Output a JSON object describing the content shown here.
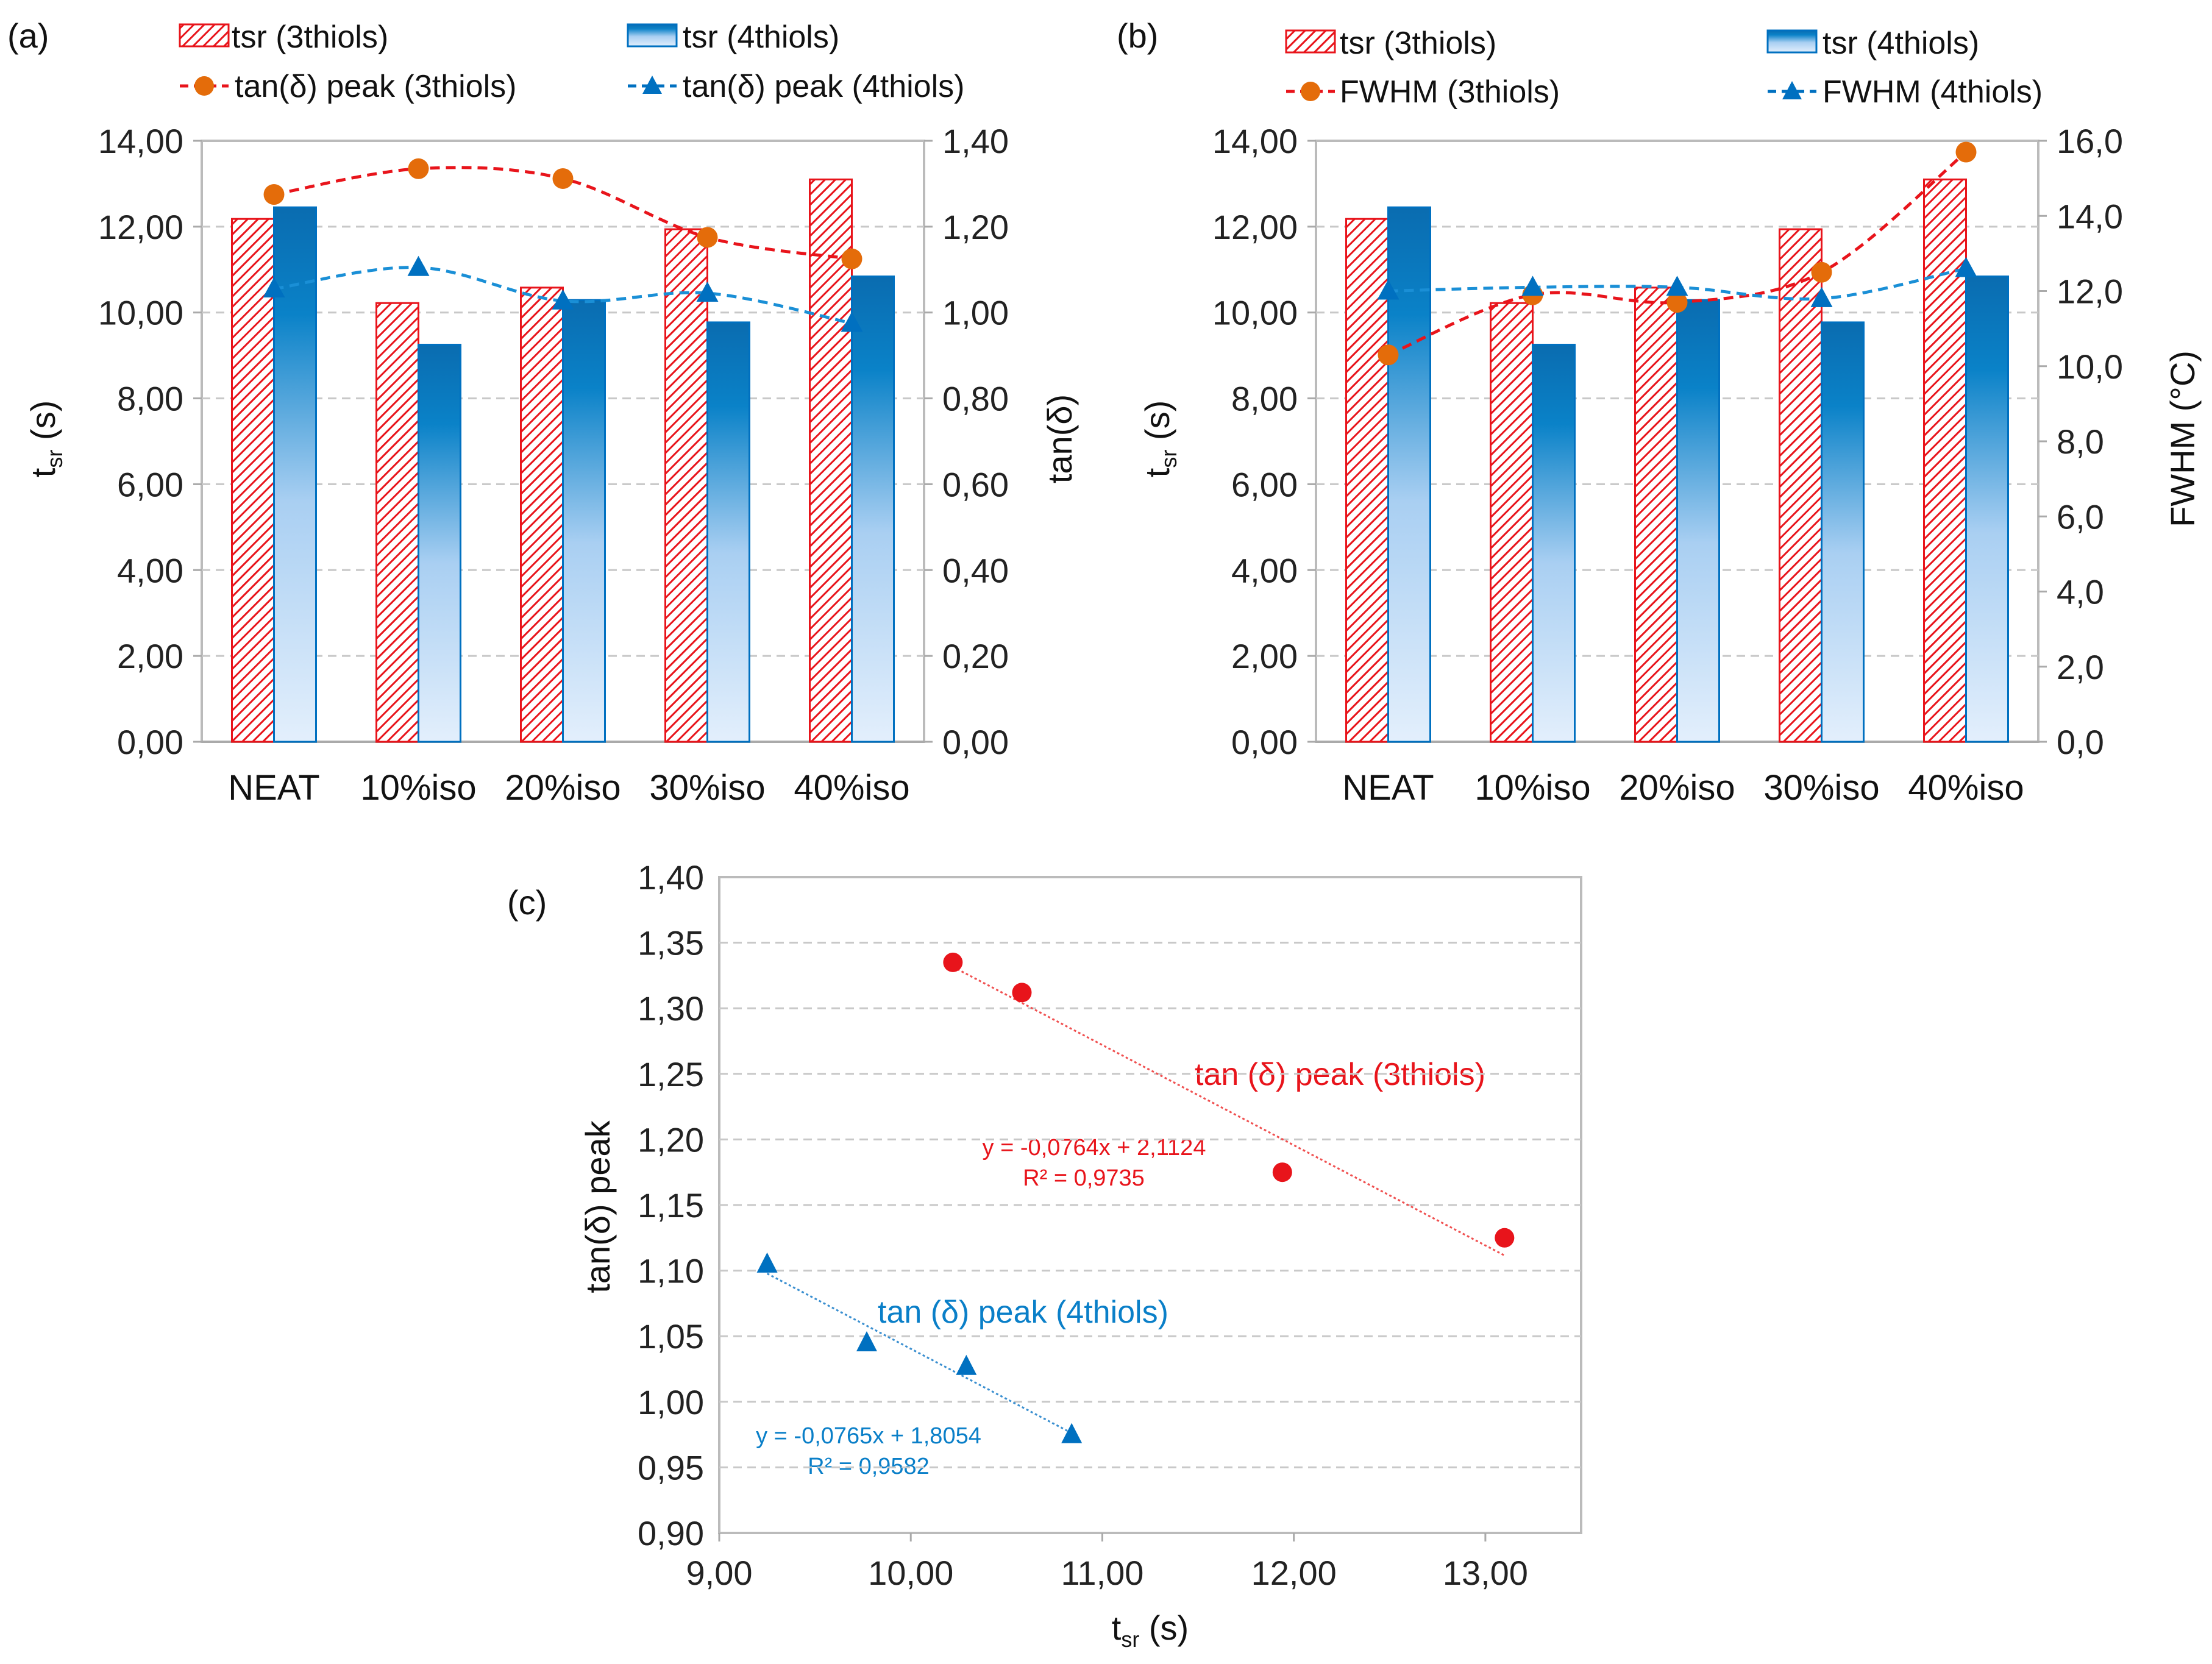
{
  "chart_data": [
    {
      "type": "bar",
      "panel": "(a)",
      "categories": [
        "NEAT",
        "10%iso",
        "20%iso",
        "30%iso",
        "40%iso"
      ],
      "series": [
        {
          "name": "tsr (3thiols)",
          "kind": "bar",
          "axis": "left",
          "values": [
            12.18,
            10.22,
            10.58,
            11.94,
            13.1
          ]
        },
        {
          "name": "tsr (4thiols)",
          "kind": "bar",
          "axis": "left",
          "values": [
            12.45,
            9.25,
            10.29,
            9.77,
            10.84
          ]
        },
        {
          "name": "tan(δ) peak (3thiols)",
          "kind": "line",
          "axis": "right",
          "values": [
            1.275,
            1.335,
            1.312,
            1.175,
            1.125
          ]
        },
        {
          "name": "tan(δ) peak (4thiols)",
          "kind": "line",
          "axis": "right",
          "values": [
            1.055,
            1.105,
            1.027,
            1.045,
            0.975
          ]
        }
      ],
      "ylabel": {
        "main": "t",
        "sub": "sr",
        "unit": " (s)"
      },
      "y2label": "tan(δ)",
      "ylim": [
        0,
        14
      ],
      "yticks": [
        "0,00",
        "2,00",
        "4,00",
        "6,00",
        "8,00",
        "10,00",
        "12,00",
        "14,00"
      ],
      "y2lim": [
        0,
        1.4
      ],
      "y2ticks": [
        "0,00",
        "0,20",
        "0,40",
        "0,60",
        "0,80",
        "1,00",
        "1,20",
        "1,40"
      ],
      "grid": true,
      "legend": "top"
    },
    {
      "type": "bar",
      "panel": "(b)",
      "categories": [
        "NEAT",
        "10%iso",
        "20%iso",
        "30%iso",
        "40%iso"
      ],
      "series": [
        {
          "name": "tsr (3thiols)",
          "kind": "bar",
          "axis": "left",
          "values": [
            12.18,
            10.22,
            10.58,
            11.94,
            13.1
          ]
        },
        {
          "name": "tsr (4thiols)",
          "kind": "bar",
          "axis": "left",
          "values": [
            12.45,
            9.25,
            10.29,
            9.77,
            10.84
          ]
        },
        {
          "name": "FWHM (3thiols)",
          "kind": "line",
          "axis": "right",
          "values": [
            10.3,
            11.9,
            11.7,
            12.5,
            15.7
          ]
        },
        {
          "name": "FWHM (4thiols)",
          "kind": "line",
          "axis": "right",
          "values": [
            12.0,
            12.1,
            12.1,
            11.8,
            12.6
          ]
        }
      ],
      "ylabel": {
        "main": "t",
        "sub": "sr",
        "unit": " (s)"
      },
      "y2label": "FWHM (°C)",
      "ylim": [
        0,
        14
      ],
      "yticks": [
        "0,00",
        "2,00",
        "4,00",
        "6,00",
        "8,00",
        "10,00",
        "12,00",
        "14,00"
      ],
      "y2lim": [
        0,
        16
      ],
      "y2ticks": [
        "0,0",
        "2,0",
        "4,0",
        "6,0",
        "8,0",
        "10,0",
        "12,0",
        "14,0",
        "16,0"
      ],
      "grid": true,
      "legend": "top"
    },
    {
      "type": "scatter",
      "panel": "(c)",
      "series": [
        {
          "name": "tan (δ) peak (3thiols)",
          "x": [
            10.22,
            10.58,
            11.94,
            13.1
          ],
          "y": [
            1.335,
            1.312,
            1.175,
            1.125
          ],
          "trend": {
            "slope": -0.0764,
            "intercept": 2.1124,
            "equation": "y = -0,0764x + 2,1124",
            "r2": "R² = 0,9735"
          }
        },
        {
          "name": "tan (δ) peak (4thiols)",
          "x": [
            9.25,
            9.77,
            10.29,
            10.84
          ],
          "y": [
            1.105,
            1.045,
            1.027,
            0.975
          ],
          "trend": {
            "slope": -0.0765,
            "intercept": 1.8054,
            "equation": "y = -0,0765x + 1,8054",
            "r2": "R² = 0,9582"
          }
        }
      ],
      "xlabel": {
        "main": "t",
        "sub": "sr",
        "unit": " (s)"
      },
      "ylabel": "tan(δ) peak",
      "xlim": [
        9,
        13.5
      ],
      "xticks": [
        "9,00",
        "10,00",
        "11,00",
        "12,00",
        "13,00"
      ],
      "ylim": [
        0.9,
        1.4
      ],
      "yticks": [
        "0,90",
        "0,95",
        "1,00",
        "1,05",
        "1,10",
        "1,15",
        "1,20",
        "1,25",
        "1,30",
        "1,35",
        "1,40"
      ],
      "grid": true
    }
  ],
  "colors": {
    "red": "#e8141b",
    "orange": "#e46c0a",
    "blue": "#0070c0",
    "lightblue": "#dcebfb"
  }
}
